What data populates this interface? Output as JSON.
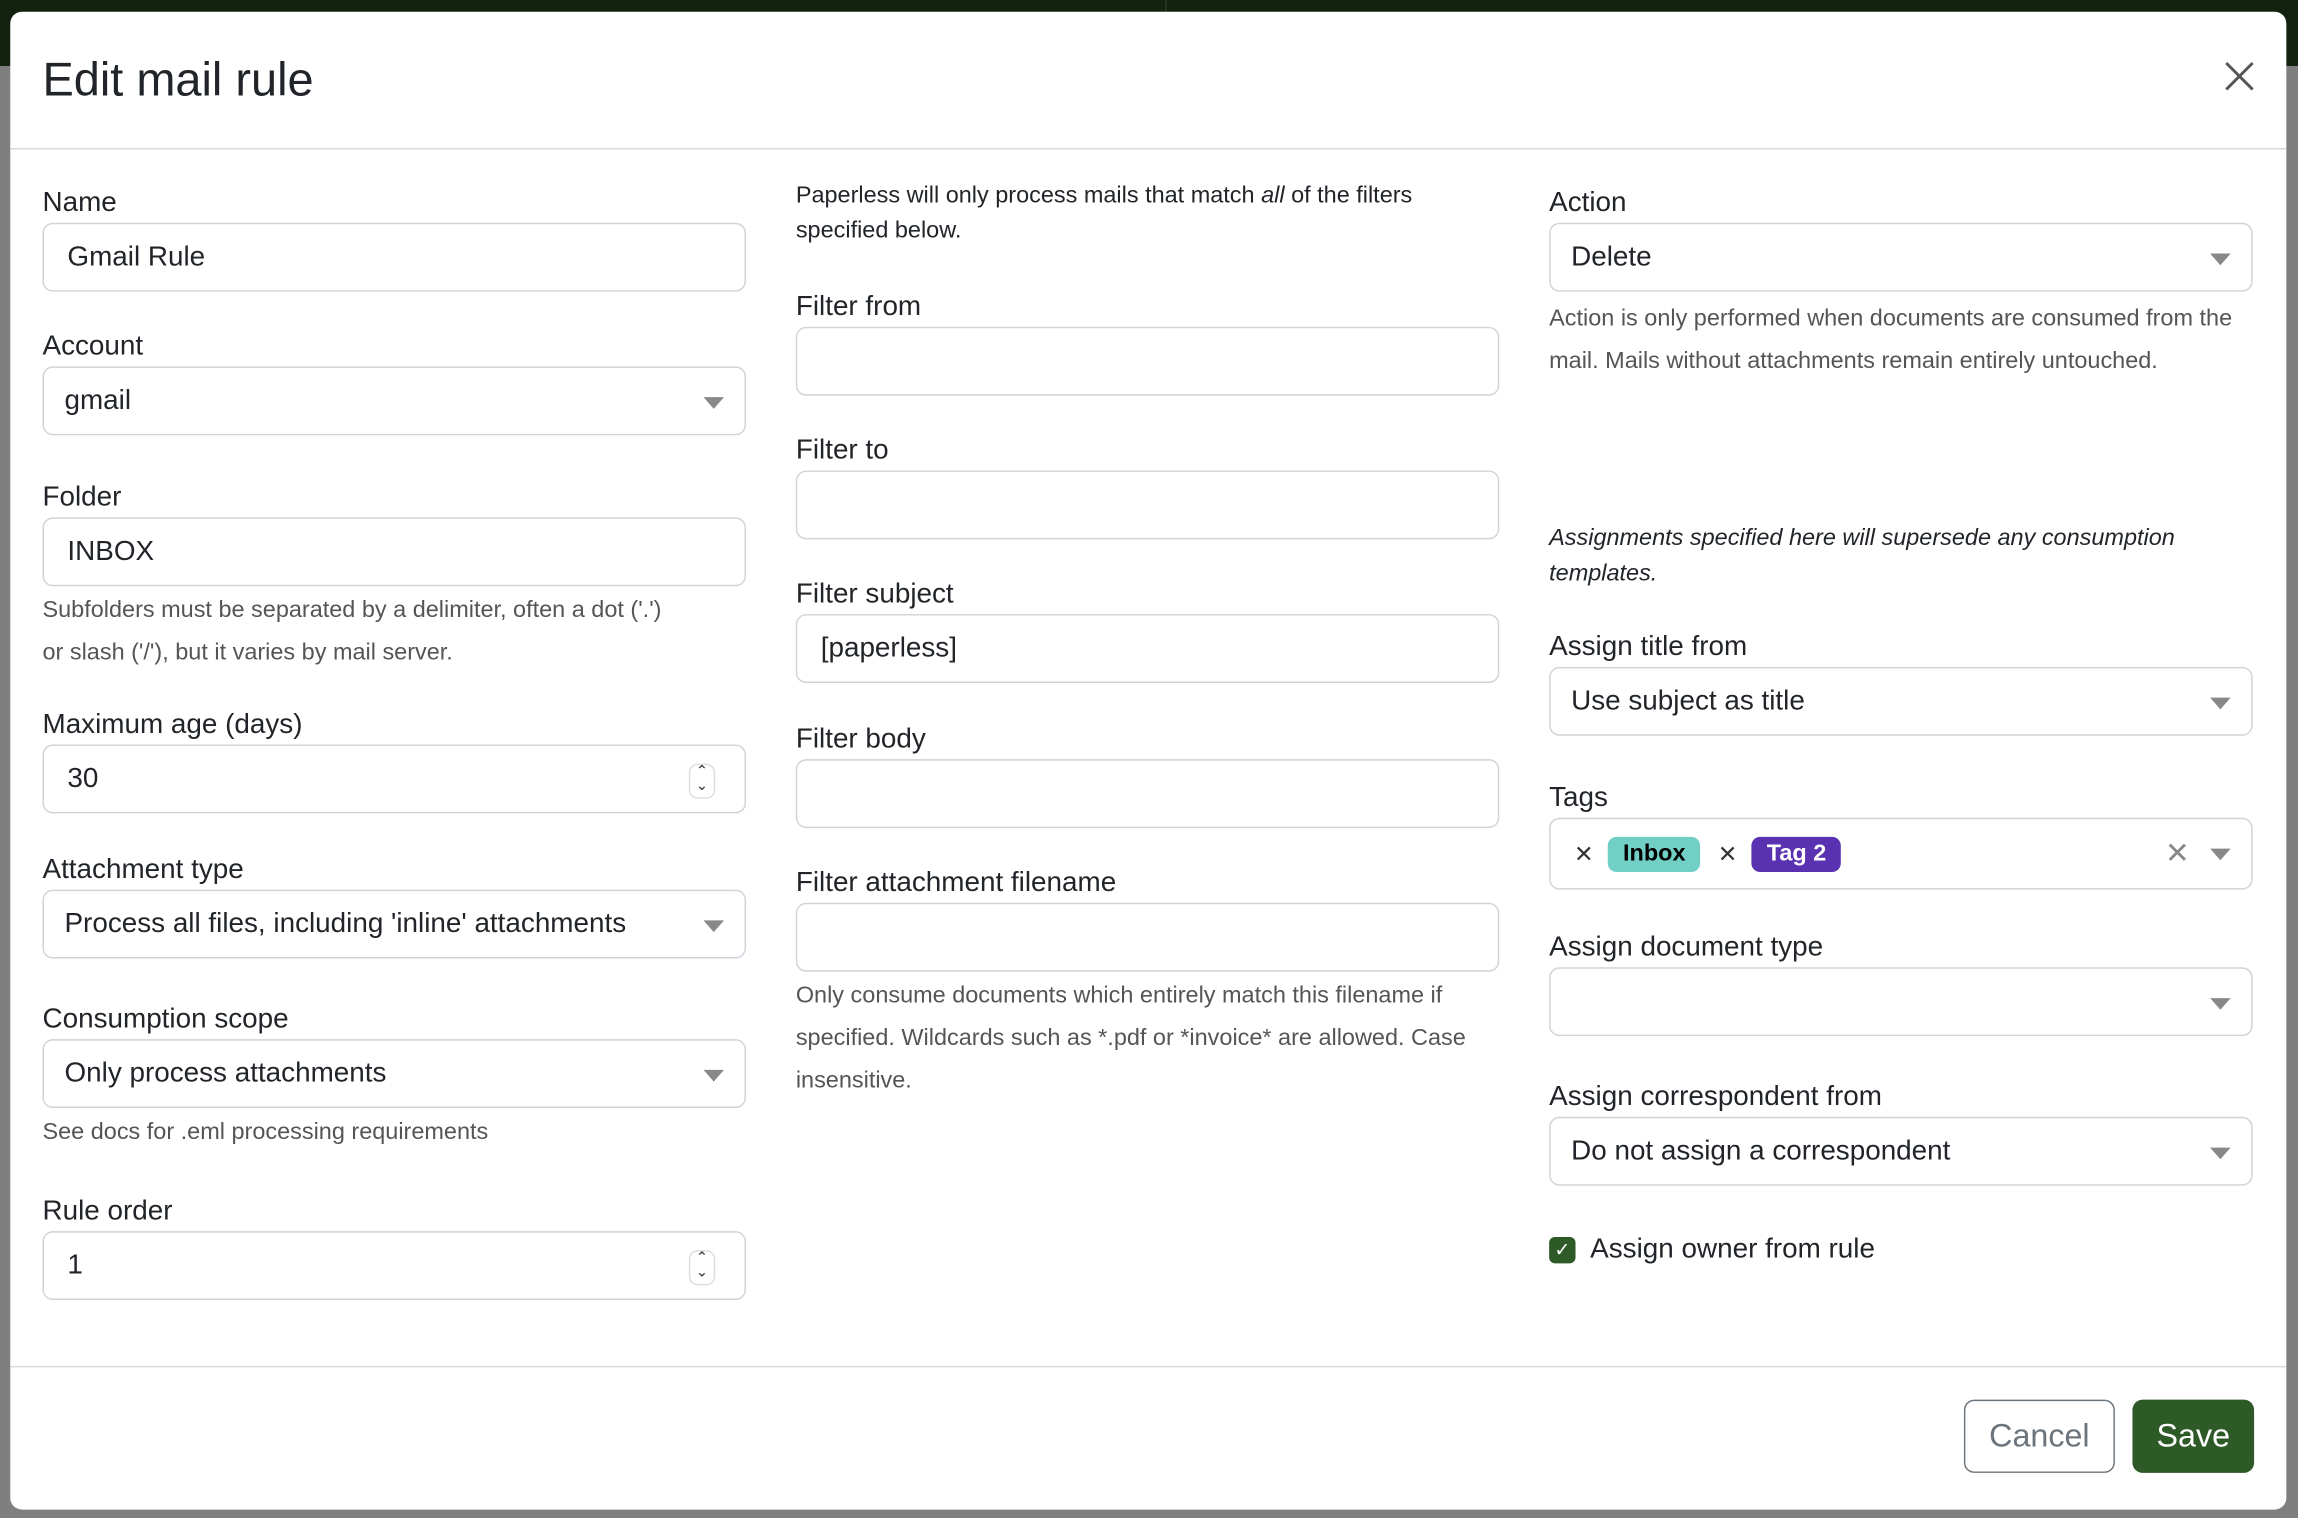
{
  "modal": {
    "title": "Edit mail rule"
  },
  "col1": {
    "name": {
      "label": "Name",
      "value": "Gmail Rule"
    },
    "account": {
      "label": "Account",
      "value": "gmail"
    },
    "folder": {
      "label": "Folder",
      "value": "INBOX",
      "help1": "Subfolders must be separated by a delimiter, often a dot ('.')",
      "help2": "or slash ('/'), but it varies by mail server."
    },
    "max_age": {
      "label": "Maximum age (days)",
      "value": "30"
    },
    "attachment_type": {
      "label": "Attachment type",
      "value": "Process all files, including 'inline' attachments"
    },
    "consumption_scope": {
      "label": "Consumption scope",
      "value": "Only process attachments",
      "help": "See docs for .eml processing requirements"
    },
    "rule_order": {
      "label": "Rule order",
      "value": "1"
    }
  },
  "col2": {
    "intro_pre": "Paperless will only process mails that match ",
    "intro_em": "all",
    "intro_post": " of the filters specified below.",
    "filter_from": {
      "label": "Filter from",
      "value": ""
    },
    "filter_to": {
      "label": "Filter to",
      "value": ""
    },
    "filter_subject": {
      "label": "Filter subject",
      "value": "[paperless]"
    },
    "filter_body": {
      "label": "Filter body",
      "value": ""
    },
    "filter_attachment": {
      "label": "Filter attachment filename",
      "value": "",
      "help": "Only consume documents which entirely match this filename if specified. Wildcards such as *.pdf or *invoice* are allowed. Case insensitive."
    }
  },
  "col3": {
    "action": {
      "label": "Action",
      "value": "Delete",
      "help": "Action is only performed when documents are consumed from the mail. Mails without attachments remain entirely untouched."
    },
    "assign_note": "Assignments specified here will supersede any consumption templates.",
    "assign_title": {
      "label": "Assign title from",
      "value": "Use subject as title"
    },
    "tags": {
      "label": "Tags",
      "items": [
        {
          "name": "Inbox",
          "bg": "#72cfc6",
          "fg": "#000000"
        },
        {
          "name": "Tag 2",
          "bg": "#5a31b0",
          "fg": "#ffffff"
        }
      ]
    },
    "doc_type": {
      "label": "Assign document type",
      "value": ""
    },
    "correspondent": {
      "label": "Assign correspondent from",
      "value": "Do not assign a correspondent"
    },
    "owner": {
      "label": "Assign owner from rule",
      "checked": true
    }
  },
  "footer": {
    "cancel": "Cancel",
    "save": "Save"
  },
  "colors": {
    "primary": "#2d5a27",
    "header_band": "#13220f"
  }
}
